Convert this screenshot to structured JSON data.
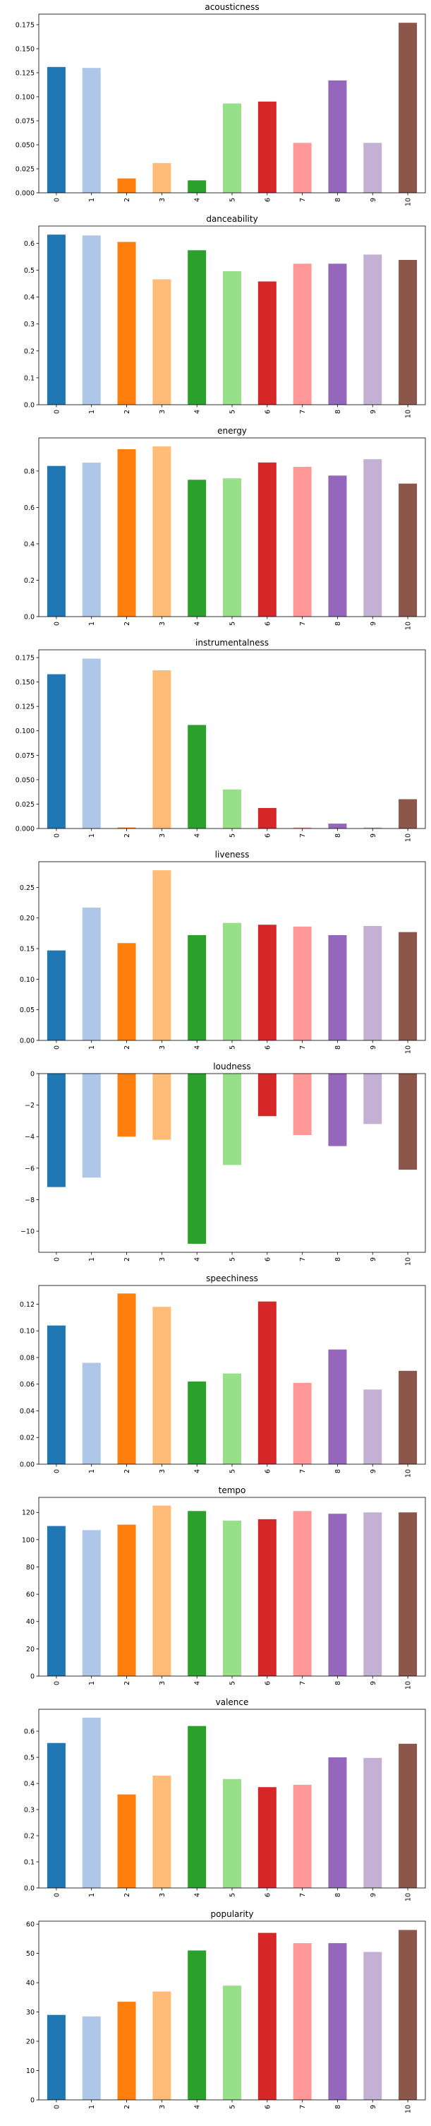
{
  "categories": [
    "0",
    "1",
    "2",
    "3",
    "4",
    "5",
    "6",
    "7",
    "8",
    "9",
    "10"
  ],
  "colors": [
    "#1f77b4",
    "#aec7e8",
    "#ff7f0e",
    "#ffbb78",
    "#2ca02c",
    "#98df8a",
    "#d62728",
    "#ff9896",
    "#9467bd",
    "#c5b0d5",
    "#8c564b"
  ],
  "chart_data": [
    {
      "type": "bar",
      "title": "acousticness",
      "categories": [
        "0",
        "1",
        "2",
        "3",
        "4",
        "5",
        "6",
        "7",
        "8",
        "9",
        "10"
      ],
      "values": [
        0.131,
        0.13,
        0.015,
        0.031,
        0.013,
        0.093,
        0.095,
        0.052,
        0.117,
        0.052,
        0.177
      ],
      "ylim": [
        0,
        0.186
      ],
      "yticks": [
        0,
        0.025,
        0.05,
        0.075,
        0.1,
        0.125,
        0.15,
        0.175
      ],
      "ytick_labels": [
        "0.000",
        "0.025",
        "0.050",
        "0.075",
        "0.100",
        "0.125",
        "0.150",
        "0.175"
      ],
      "grid": false
    },
    {
      "type": "bar",
      "title": "danceability",
      "categories": [
        "0",
        "1",
        "2",
        "3",
        "4",
        "5",
        "6",
        "7",
        "8",
        "9",
        "10"
      ],
      "values": [
        0.632,
        0.629,
        0.605,
        0.466,
        0.574,
        0.496,
        0.458,
        0.524,
        0.524,
        0.558,
        0.538
      ],
      "ylim": [
        0,
        0.664
      ],
      "yticks": [
        0,
        0.1,
        0.2,
        0.3,
        0.4,
        0.5,
        0.6
      ],
      "ytick_labels": [
        "0.0",
        "0.1",
        "0.2",
        "0.3",
        "0.4",
        "0.5",
        "0.6"
      ],
      "grid": false
    },
    {
      "type": "bar",
      "title": "energy",
      "categories": [
        "0",
        "1",
        "2",
        "3",
        "4",
        "5",
        "6",
        "7",
        "8",
        "9",
        "10"
      ],
      "values": [
        0.828,
        0.846,
        0.92,
        0.935,
        0.752,
        0.76,
        0.847,
        0.823,
        0.775,
        0.865,
        0.731
      ],
      "ylim": [
        0,
        0.982
      ],
      "yticks": [
        0,
        0.2,
        0.4,
        0.6,
        0.8
      ],
      "ytick_labels": [
        "0.0",
        "0.2",
        "0.4",
        "0.6",
        "0.8"
      ],
      "grid": false
    },
    {
      "type": "bar",
      "title": "instrumentalness",
      "categories": [
        "0",
        "1",
        "2",
        "3",
        "4",
        "5",
        "6",
        "7",
        "8",
        "9",
        "10"
      ],
      "values": [
        0.158,
        0.174,
        0.001,
        0.162,
        0.106,
        0.04,
        0.021,
        0.001,
        0.005,
        0.001,
        0.03
      ],
      "ylim": [
        0,
        0.183
      ],
      "yticks": [
        0,
        0.025,
        0.05,
        0.075,
        0.1,
        0.125,
        0.15,
        0.175
      ],
      "ytick_labels": [
        "0.000",
        "0.025",
        "0.050",
        "0.075",
        "0.100",
        "0.125",
        "0.150",
        "0.175"
      ],
      "grid": false
    },
    {
      "type": "bar",
      "title": "liveness",
      "categories": [
        "0",
        "1",
        "2",
        "3",
        "4",
        "5",
        "6",
        "7",
        "8",
        "9",
        "10"
      ],
      "values": [
        0.147,
        0.217,
        0.159,
        0.278,
        0.172,
        0.192,
        0.189,
        0.186,
        0.172,
        0.187,
        0.177
      ],
      "ylim": [
        0,
        0.292
      ],
      "yticks": [
        0,
        0.05,
        0.1,
        0.15,
        0.2,
        0.25
      ],
      "ytick_labels": [
        "0.00",
        "0.05",
        "0.10",
        "0.15",
        "0.20",
        "0.25"
      ],
      "grid": false
    },
    {
      "type": "bar",
      "title": "loudness",
      "categories": [
        "0",
        "1",
        "2",
        "3",
        "4",
        "5",
        "6",
        "7",
        "8",
        "9",
        "10"
      ],
      "values": [
        -7.2,
        -6.6,
        -4.0,
        -4.2,
        -10.8,
        -5.8,
        -2.7,
        -3.9,
        -4.6,
        -3.2,
        -6.1
      ],
      "ylim": [
        -11.34,
        0
      ],
      "yticks": [
        -10,
        -8,
        -6,
        -4,
        -2,
        0
      ],
      "ytick_labels": [
        "−10",
        "−8",
        "−6",
        "−4",
        "−2",
        "0"
      ],
      "grid": false
    },
    {
      "type": "bar",
      "title": "speechiness",
      "categories": [
        "0",
        "1",
        "2",
        "3",
        "4",
        "5",
        "6",
        "7",
        "8",
        "9",
        "10"
      ],
      "values": [
        0.104,
        0.076,
        0.128,
        0.118,
        0.062,
        0.068,
        0.122,
        0.061,
        0.086,
        0.056,
        0.07
      ],
      "ylim": [
        0,
        0.134
      ],
      "yticks": [
        0,
        0.02,
        0.04,
        0.06,
        0.08,
        0.1,
        0.12
      ],
      "ytick_labels": [
        "0.00",
        "0.02",
        "0.04",
        "0.06",
        "0.08",
        "0.10",
        "0.12"
      ],
      "grid": false
    },
    {
      "type": "bar",
      "title": "tempo",
      "categories": [
        "0",
        "1",
        "2",
        "3",
        "4",
        "5",
        "6",
        "7",
        "8",
        "9",
        "10"
      ],
      "values": [
        110,
        107,
        111,
        125,
        121,
        114,
        115,
        121,
        119,
        120,
        120
      ],
      "ylim": [
        0,
        131
      ],
      "yticks": [
        0,
        20,
        40,
        60,
        80,
        100,
        120
      ],
      "ytick_labels": [
        "0",
        "20",
        "40",
        "60",
        "80",
        "100",
        "120"
      ],
      "grid": false
    },
    {
      "type": "bar",
      "title": "valence",
      "categories": [
        "0",
        "1",
        "2",
        "3",
        "4",
        "5",
        "6",
        "7",
        "8",
        "9",
        "10"
      ],
      "values": [
        0.555,
        0.652,
        0.358,
        0.43,
        0.62,
        0.417,
        0.386,
        0.395,
        0.5,
        0.498,
        0.552
      ],
      "ylim": [
        0,
        0.684
      ],
      "yticks": [
        0,
        0.1,
        0.2,
        0.3,
        0.4,
        0.5,
        0.6
      ],
      "ytick_labels": [
        "0.0",
        "0.1",
        "0.2",
        "0.3",
        "0.4",
        "0.5",
        "0.6"
      ],
      "grid": false
    },
    {
      "type": "bar",
      "title": "popularity",
      "categories": [
        "0",
        "1",
        "2",
        "3",
        "4",
        "5",
        "6",
        "7",
        "8",
        "9",
        "10"
      ],
      "values": [
        29,
        28.5,
        33.5,
        37,
        51,
        39,
        57,
        53.5,
        53.5,
        50.5,
        58
      ],
      "ylim": [
        0,
        61
      ],
      "yticks": [
        0,
        10,
        20,
        30,
        40,
        50,
        60
      ],
      "ytick_labels": [
        "0",
        "10",
        "20",
        "30",
        "40",
        "50",
        "60"
      ],
      "grid": false
    }
  ]
}
